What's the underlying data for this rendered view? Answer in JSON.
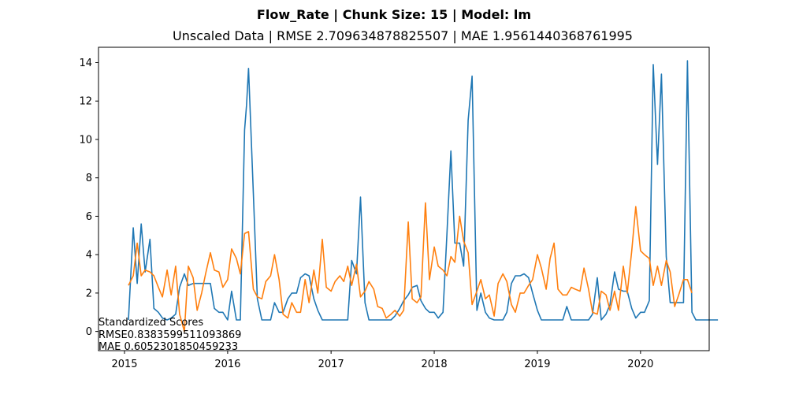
{
  "chart_data": {
    "type": "line",
    "suptitle": "Flow_Rate | Chunk Size: 15 | Model: lm",
    "title": "Unscaled Data | RMSE 2.709634878825507 | MAE 1.9561440368761995",
    "xlabel": "",
    "ylabel": "",
    "xlim": [
      "2014-10-01",
      "2020-08-31"
    ],
    "ylim": [
      -1.0,
      14.8
    ],
    "x_ticks": [
      "2015",
      "2016",
      "2017",
      "2018",
      "2019",
      "2020"
    ],
    "y_ticks": [
      0,
      2,
      4,
      6,
      8,
      10,
      12,
      14
    ],
    "grid": false,
    "legend": "none",
    "annotation": {
      "heading": "Standardized Scores",
      "rmse_line": "RMSE0.8383599511093869",
      "mae_line": "MAE 0.6052301850459233"
    },
    "series": [
      {
        "color": "#1f77b4",
        "points": [
          [
            "2015-01-15",
            0.6
          ],
          [
            "2015-02-01",
            5.4
          ],
          [
            "2015-02-15",
            2.5
          ],
          [
            "2015-03-01",
            5.6
          ],
          [
            "2015-03-15",
            3.1
          ],
          [
            "2015-04-01",
            4.8
          ],
          [
            "2015-04-15",
            1.2
          ],
          [
            "2015-05-01",
            1.0
          ],
          [
            "2015-05-15",
            0.7
          ],
          [
            "2015-06-01",
            0.6
          ],
          [
            "2015-06-15",
            0.7
          ],
          [
            "2015-07-01",
            0.9
          ],
          [
            "2015-07-15",
            2.3
          ],
          [
            "2015-08-01",
            3.0
          ],
          [
            "2015-08-15",
            2.4
          ],
          [
            "2015-09-01",
            2.5
          ],
          [
            "2015-10-01",
            2.5
          ],
          [
            "2015-11-01",
            2.5
          ],
          [
            "2015-11-15",
            1.2
          ],
          [
            "2015-12-01",
            1.0
          ],
          [
            "2015-12-15",
            1.0
          ],
          [
            "2016-01-01",
            0.6
          ],
          [
            "2016-01-15",
            2.1
          ],
          [
            "2016-02-01",
            0.6
          ],
          [
            "2016-02-15",
            0.6
          ],
          [
            "2016-03-01",
            10.5
          ],
          [
            "2016-03-08",
            11.8
          ],
          [
            "2016-03-15",
            13.7
          ],
          [
            "2016-04-01",
            7.2
          ],
          [
            "2016-04-15",
            1.7
          ],
          [
            "2016-05-01",
            0.6
          ],
          [
            "2016-05-15",
            0.6
          ],
          [
            "2016-06-01",
            0.6
          ],
          [
            "2016-06-15",
            1.5
          ],
          [
            "2016-07-01",
            1.0
          ],
          [
            "2016-07-15",
            1.0
          ],
          [
            "2016-08-01",
            1.7
          ],
          [
            "2016-08-15",
            2.0
          ],
          [
            "2016-09-01",
            2.0
          ],
          [
            "2016-09-15",
            2.8
          ],
          [
            "2016-10-01",
            3.0
          ],
          [
            "2016-10-15",
            2.9
          ],
          [
            "2016-11-01",
            1.7
          ],
          [
            "2016-11-15",
            1.1
          ],
          [
            "2016-12-01",
            0.6
          ],
          [
            "2017-01-01",
            0.6
          ],
          [
            "2017-02-01",
            0.6
          ],
          [
            "2017-03-01",
            0.6
          ],
          [
            "2017-03-15",
            3.7
          ],
          [
            "2017-04-01",
            3.0
          ],
          [
            "2017-04-15",
            7.0
          ],
          [
            "2017-05-01",
            1.5
          ],
          [
            "2017-05-15",
            0.6
          ],
          [
            "2017-06-01",
            0.6
          ],
          [
            "2017-07-01",
            0.6
          ],
          [
            "2017-08-01",
            0.6
          ],
          [
            "2017-08-15",
            0.8
          ],
          [
            "2017-09-01",
            1.2
          ],
          [
            "2017-09-15",
            1.6
          ],
          [
            "2017-10-01",
            1.9
          ],
          [
            "2017-10-15",
            2.3
          ],
          [
            "2017-11-01",
            2.4
          ],
          [
            "2017-11-15",
            1.6
          ],
          [
            "2017-12-01",
            1.2
          ],
          [
            "2017-12-15",
            1.0
          ],
          [
            "2018-01-01",
            1.0
          ],
          [
            "2018-01-15",
            0.7
          ],
          [
            "2018-02-01",
            1.0
          ],
          [
            "2018-02-15",
            5.1
          ],
          [
            "2018-03-01",
            9.4
          ],
          [
            "2018-03-15",
            4.6
          ],
          [
            "2018-04-01",
            4.6
          ],
          [
            "2018-04-15",
            3.4
          ],
          [
            "2018-05-01",
            11.0
          ],
          [
            "2018-05-15",
            13.3
          ],
          [
            "2018-06-01",
            1.1
          ],
          [
            "2018-06-15",
            2.0
          ],
          [
            "2018-07-01",
            1.0
          ],
          [
            "2018-07-15",
            0.7
          ],
          [
            "2018-08-01",
            0.6
          ],
          [
            "2018-09-01",
            0.6
          ],
          [
            "2018-09-15",
            1.0
          ],
          [
            "2018-10-01",
            2.5
          ],
          [
            "2018-10-15",
            2.9
          ],
          [
            "2018-11-01",
            2.9
          ],
          [
            "2018-11-15",
            3.0
          ],
          [
            "2018-12-01",
            2.8
          ],
          [
            "2018-12-15",
            2.0
          ],
          [
            "2019-01-01",
            1.1
          ],
          [
            "2019-01-15",
            0.6
          ],
          [
            "2019-02-01",
            0.6
          ],
          [
            "2019-03-01",
            0.6
          ],
          [
            "2019-04-01",
            0.6
          ],
          [
            "2019-04-15",
            1.3
          ],
          [
            "2019-05-01",
            0.6
          ],
          [
            "2019-06-01",
            0.6
          ],
          [
            "2019-07-01",
            0.6
          ],
          [
            "2019-07-15",
            0.9
          ],
          [
            "2019-08-01",
            2.8
          ],
          [
            "2019-08-15",
            0.6
          ],
          [
            "2019-09-01",
            0.9
          ],
          [
            "2019-09-15",
            1.4
          ],
          [
            "2019-10-01",
            3.1
          ],
          [
            "2019-10-15",
            2.2
          ],
          [
            "2019-11-01",
            2.1
          ],
          [
            "2019-11-15",
            2.1
          ],
          [
            "2019-12-01",
            1.2
          ],
          [
            "2019-12-15",
            0.7
          ],
          [
            "2020-01-01",
            1.0
          ],
          [
            "2020-01-15",
            1.0
          ],
          [
            "2020-02-01",
            1.6
          ],
          [
            "2020-02-15",
            13.9
          ],
          [
            "2020-03-01",
            8.7
          ],
          [
            "2020-03-15",
            13.4
          ],
          [
            "2020-04-01",
            3.9
          ],
          [
            "2020-04-15",
            1.5
          ],
          [
            "2020-05-01",
            1.5
          ],
          [
            "2020-06-01",
            1.5
          ],
          [
            "2020-06-15",
            14.1
          ],
          [
            "2020-07-01",
            1.0
          ],
          [
            "2020-07-15",
            0.6
          ],
          [
            "2020-08-01",
            0.6
          ],
          [
            "2020-09-01",
            0.6
          ],
          [
            "2020-10-01",
            0.6
          ]
        ]
      },
      {
        "color": "#ff7f0e",
        "points": [
          [
            "2015-01-15",
            2.4
          ],
          [
            "2015-02-01",
            2.9
          ],
          [
            "2015-02-15",
            4.6
          ],
          [
            "2015-03-01",
            2.9
          ],
          [
            "2015-03-15",
            3.2
          ],
          [
            "2015-04-01",
            3.1
          ],
          [
            "2015-04-15",
            2.9
          ],
          [
            "2015-05-01",
            2.3
          ],
          [
            "2015-05-15",
            1.8
          ],
          [
            "2015-06-01",
            3.2
          ],
          [
            "2015-06-15",
            1.9
          ],
          [
            "2015-07-01",
            3.4
          ],
          [
            "2015-07-15",
            0.9
          ],
          [
            "2015-08-01",
            0.0
          ],
          [
            "2015-08-15",
            3.4
          ],
          [
            "2015-09-01",
            2.8
          ],
          [
            "2015-09-15",
            1.1
          ],
          [
            "2015-10-01",
            2.0
          ],
          [
            "2015-10-15",
            3.0
          ],
          [
            "2015-11-01",
            4.1
          ],
          [
            "2015-11-15",
            3.2
          ],
          [
            "2015-12-01",
            3.1
          ],
          [
            "2015-12-15",
            2.3
          ],
          [
            "2016-01-01",
            2.7
          ],
          [
            "2016-01-15",
            4.3
          ],
          [
            "2016-02-01",
            3.8
          ],
          [
            "2016-02-15",
            3.0
          ],
          [
            "2016-03-01",
            5.1
          ],
          [
            "2016-03-15",
            5.2
          ],
          [
            "2016-04-01",
            2.2
          ],
          [
            "2016-04-15",
            1.8
          ],
          [
            "2016-05-01",
            1.7
          ],
          [
            "2016-05-15",
            2.6
          ],
          [
            "2016-06-01",
            2.9
          ],
          [
            "2016-06-15",
            4.0
          ],
          [
            "2016-07-01",
            2.7
          ],
          [
            "2016-07-15",
            0.9
          ],
          [
            "2016-08-01",
            0.7
          ],
          [
            "2016-08-15",
            1.5
          ],
          [
            "2016-09-01",
            1.0
          ],
          [
            "2016-09-15",
            1.0
          ],
          [
            "2016-10-01",
            2.7
          ],
          [
            "2016-10-15",
            1.5
          ],
          [
            "2016-11-01",
            3.2
          ],
          [
            "2016-11-15",
            2.0
          ],
          [
            "2016-12-01",
            4.8
          ],
          [
            "2016-12-15",
            2.3
          ],
          [
            "2017-01-01",
            2.1
          ],
          [
            "2017-01-15",
            2.6
          ],
          [
            "2017-02-01",
            2.9
          ],
          [
            "2017-02-15",
            2.6
          ],
          [
            "2017-03-01",
            3.4
          ],
          [
            "2017-03-15",
            2.4
          ],
          [
            "2017-04-01",
            3.5
          ],
          [
            "2017-04-15",
            1.8
          ],
          [
            "2017-05-01",
            2.1
          ],
          [
            "2017-05-15",
            2.6
          ],
          [
            "2017-06-01",
            2.2
          ],
          [
            "2017-06-15",
            1.3
          ],
          [
            "2017-07-01",
            1.2
          ],
          [
            "2017-07-15",
            0.7
          ],
          [
            "2017-08-01",
            0.9
          ],
          [
            "2017-08-15",
            1.1
          ],
          [
            "2017-09-01",
            0.8
          ],
          [
            "2017-09-15",
            1.1
          ],
          [
            "2017-10-01",
            5.7
          ],
          [
            "2017-10-15",
            1.7
          ],
          [
            "2017-11-01",
            1.5
          ],
          [
            "2017-11-15",
            1.8
          ],
          [
            "2017-12-01",
            6.7
          ],
          [
            "2017-12-15",
            2.7
          ],
          [
            "2018-01-01",
            4.4
          ],
          [
            "2018-01-15",
            3.4
          ],
          [
            "2018-02-01",
            3.2
          ],
          [
            "2018-02-15",
            2.9
          ],
          [
            "2018-03-01",
            3.9
          ],
          [
            "2018-03-15",
            3.6
          ],
          [
            "2018-04-01",
            6.0
          ],
          [
            "2018-04-15",
            4.7
          ],
          [
            "2018-05-01",
            4.1
          ],
          [
            "2018-05-15",
            1.4
          ],
          [
            "2018-06-01",
            2.1
          ],
          [
            "2018-06-15",
            2.7
          ],
          [
            "2018-07-01",
            1.7
          ],
          [
            "2018-07-15",
            1.9
          ],
          [
            "2018-08-01",
            0.8
          ],
          [
            "2018-08-15",
            2.5
          ],
          [
            "2018-09-01",
            3.0
          ],
          [
            "2018-09-15",
            2.6
          ],
          [
            "2018-10-01",
            1.4
          ],
          [
            "2018-10-15",
            1.0
          ],
          [
            "2018-11-01",
            2.0
          ],
          [
            "2018-11-15",
            2.0
          ],
          [
            "2018-12-01",
            2.4
          ],
          [
            "2018-12-15",
            2.7
          ],
          [
            "2019-01-01",
            4.0
          ],
          [
            "2019-01-15",
            3.3
          ],
          [
            "2019-02-01",
            2.2
          ],
          [
            "2019-02-15",
            3.8
          ],
          [
            "2019-03-01",
            4.6
          ],
          [
            "2019-03-15",
            2.2
          ],
          [
            "2019-04-01",
            1.9
          ],
          [
            "2019-04-15",
            1.9
          ],
          [
            "2019-05-01",
            2.3
          ],
          [
            "2019-05-15",
            2.2
          ],
          [
            "2019-06-01",
            2.1
          ],
          [
            "2019-06-15",
            3.3
          ],
          [
            "2019-07-01",
            2.2
          ],
          [
            "2019-07-15",
            1.0
          ],
          [
            "2019-08-01",
            0.9
          ],
          [
            "2019-08-15",
            2.1
          ],
          [
            "2019-09-01",
            1.9
          ],
          [
            "2019-09-15",
            1.1
          ],
          [
            "2019-10-01",
            2.1
          ],
          [
            "2019-10-15",
            1.1
          ],
          [
            "2019-11-01",
            3.4
          ],
          [
            "2019-11-15",
            2.0
          ],
          [
            "2019-12-01",
            4.2
          ],
          [
            "2019-12-15",
            6.5
          ],
          [
            "2020-01-01",
            4.2
          ],
          [
            "2020-01-15",
            4.0
          ],
          [
            "2020-02-01",
            3.8
          ],
          [
            "2020-02-15",
            2.4
          ],
          [
            "2020-03-01",
            3.4
          ],
          [
            "2020-03-15",
            2.4
          ],
          [
            "2020-04-01",
            3.7
          ],
          [
            "2020-04-15",
            3.1
          ],
          [
            "2020-05-01",
            1.3
          ],
          [
            "2020-05-15",
            1.9
          ],
          [
            "2020-06-01",
            2.7
          ],
          [
            "2020-06-15",
            2.7
          ],
          [
            "2020-07-01",
            2.0
          ]
        ]
      }
    ]
  }
}
